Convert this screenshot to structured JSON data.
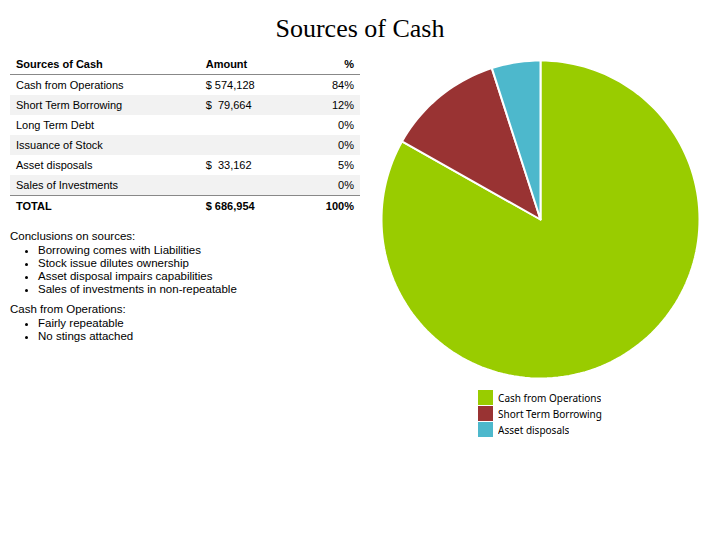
{
  "chart_data": {
    "type": "pie",
    "title": "Sources of Cash",
    "categories": [
      "Cash from Operations",
      "Short Term Borrowing",
      "Asset disposals"
    ],
    "values": [
      84,
      12,
      5
    ],
    "colors": [
      "#99cc00",
      "#993333",
      "#4db8cc"
    ],
    "legend": "bottom",
    "table": {
      "headers": [
        "Sources of Cash",
        "Amount",
        "%"
      ],
      "rows": [
        [
          "Cash from Operations",
          "$ 574,128",
          "84%"
        ],
        [
          "Short Term Borrowing",
          "$  79,664",
          "12%"
        ],
        [
          "Long Term Debt",
          null,
          "0%"
        ],
        [
          "Issuance of Stock",
          null,
          "0%"
        ],
        [
          "Asset disposals",
          "$  33,162",
          "5%"
        ],
        [
          "Sales of Investments",
          null,
          "0%"
        ],
        [
          "TOTAL",
          "$ 686,954",
          "100%"
        ]
      ]
    },
    "notes": [
      {
        "title": "Conclusions on sources:",
        "items": [
          "Borrowing comes with Liabilities",
          "Stock issue dilutes ownership",
          "Asset disposal impairs capabilities",
          "Sales of investments in non-repeatable"
        ]
      },
      {
        "title": "Cash from Operations:",
        "items": [
          "Fairly repeatable",
          "No stings attached"
        ]
      }
    ]
  }
}
